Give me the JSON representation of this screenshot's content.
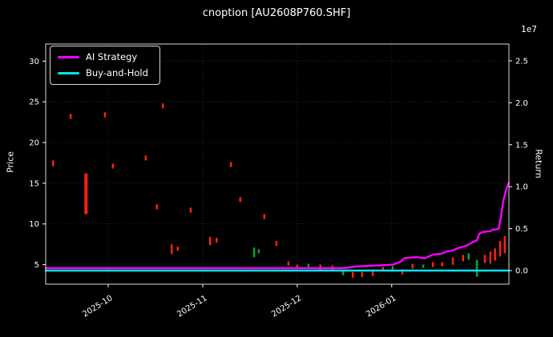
{
  "figure": {
    "background": "#000000",
    "text_color": "#ffffff"
  },
  "chart_data": {
    "type": "candlestick+line",
    "title": "cnoption [AU2608P760.SHF]",
    "ylabel_left": "Price",
    "ylabel_right": "Return",
    "right_axis_offset_label": "1e7",
    "grid": "dotted",
    "legend_position": "upper-left",
    "colors": {
      "up": "#00a63c",
      "down": "#ff2015",
      "ai_strategy": "#ff00ff",
      "buy_and_hold": "#00e5ee",
      "grid": "#ffffff",
      "text": "#ffffff",
      "spine": "#d9d9d9",
      "background": "#000000"
    },
    "x_axis": {
      "tick_labels": [
        "2025-10",
        "2025-11",
        "2025-12",
        "2026-01"
      ],
      "tick_positions": [
        0.135,
        0.339,
        0.543,
        0.747
      ]
    },
    "price_axis": {
      "min": 2.6,
      "max": 32.1,
      "ticks": [
        5,
        10,
        15,
        20,
        25,
        30
      ]
    },
    "return_axis": {
      "min": -0.162,
      "max": 2.7,
      "ticks": [
        0.0,
        0.5,
        1.0,
        1.5,
        2.0,
        2.5
      ],
      "unit": "1e7"
    },
    "series": [
      {
        "name": "AI Strategy",
        "color": "#ff00ff",
        "axis": "return",
        "points": [
          [
            0,
            0.03
          ],
          [
            0.645,
            0.03
          ],
          [
            0.671,
            0.05
          ],
          [
            0.714,
            0.06
          ],
          [
            0.749,
            0.07
          ],
          [
            0.766,
            0.105
          ],
          [
            0.775,
            0.15
          ],
          [
            0.801,
            0.16
          ],
          [
            0.818,
            0.145
          ],
          [
            0.836,
            0.19
          ],
          [
            0.853,
            0.2
          ],
          [
            0.867,
            0.23
          ],
          [
            0.879,
            0.24
          ],
          [
            0.891,
            0.27
          ],
          [
            0.905,
            0.29
          ],
          [
            0.913,
            0.31
          ],
          [
            0.922,
            0.34
          ],
          [
            0.931,
            0.36
          ],
          [
            0.936,
            0.44
          ],
          [
            0.943,
            0.46
          ],
          [
            0.96,
            0.47
          ],
          [
            0.965,
            0.49
          ],
          [
            0.971,
            0.49
          ],
          [
            0.978,
            0.5
          ],
          [
            0.983,
            0.65
          ],
          [
            0.988,
            0.84
          ],
          [
            0.995,
            0.98
          ],
          [
            1.0,
            1.05
          ]
        ]
      },
      {
        "name": "Buy-and-Hold",
        "color": "#00e5ee",
        "axis": "return",
        "points": [
          [
            0,
            0.0
          ],
          [
            1,
            0.0
          ]
        ]
      }
    ],
    "candles": [
      {
        "t": 0.016,
        "lo": 17.1,
        "hi": 17.8,
        "dir": "down"
      },
      {
        "t": 0.054,
        "lo": 22.9,
        "hi": 23.5,
        "dir": "down"
      },
      {
        "t": 0.087,
        "lo": 11.2,
        "hi": 16.2,
        "dir": "down",
        "w": 4
      },
      {
        "t": 0.128,
        "lo": 23.1,
        "hi": 23.7,
        "dir": "down"
      },
      {
        "t": 0.145,
        "lo": 16.8,
        "hi": 17.4,
        "dir": "down"
      },
      {
        "t": 0.216,
        "lo": 17.8,
        "hi": 18.4,
        "dir": "down"
      },
      {
        "t": 0.24,
        "lo": 11.8,
        "hi": 12.4,
        "dir": "down"
      },
      {
        "t": 0.253,
        "lo": 24.2,
        "hi": 24.8,
        "dir": "down"
      },
      {
        "t": 0.272,
        "lo": 6.3,
        "hi": 7.5,
        "dir": "down"
      },
      {
        "t": 0.285,
        "lo": 6.7,
        "hi": 7.2,
        "dir": "down"
      },
      {
        "t": 0.313,
        "lo": 11.4,
        "hi": 12.0,
        "dir": "down"
      },
      {
        "t": 0.355,
        "lo": 7.4,
        "hi": 8.4,
        "dir": "down"
      },
      {
        "t": 0.369,
        "lo": 7.7,
        "hi": 8.3,
        "dir": "down"
      },
      {
        "t": 0.4,
        "lo": 17.0,
        "hi": 17.6,
        "dir": "down"
      },
      {
        "t": 0.42,
        "lo": 12.7,
        "hi": 13.3,
        "dir": "down"
      },
      {
        "t": 0.45,
        "lo": 5.9,
        "hi": 7.1,
        "dir": "up"
      },
      {
        "t": 0.46,
        "lo": 6.4,
        "hi": 6.9,
        "dir": "up"
      },
      {
        "t": 0.472,
        "lo": 10.6,
        "hi": 11.2,
        "dir": "down"
      },
      {
        "t": 0.498,
        "lo": 7.3,
        "hi": 7.9,
        "dir": "down"
      },
      {
        "t": 0.524,
        "lo": 4.9,
        "hi": 5.4,
        "dir": "down"
      },
      {
        "t": 0.543,
        "lo": 4.6,
        "hi": 5.0,
        "dir": "down"
      },
      {
        "t": 0.567,
        "lo": 4.7,
        "hi": 5.1,
        "dir": "up"
      },
      {
        "t": 0.593,
        "lo": 4.3,
        "hi": 5.0,
        "dir": "down"
      },
      {
        "t": 0.619,
        "lo": 4.4,
        "hi": 4.9,
        "dir": "down"
      },
      {
        "t": 0.642,
        "lo": 3.7,
        "hi": 4.3,
        "dir": "up"
      },
      {
        "t": 0.663,
        "lo": 3.4,
        "hi": 4.1,
        "dir": "down"
      },
      {
        "t": 0.683,
        "lo": 3.5,
        "hi": 4.1,
        "dir": "down"
      },
      {
        "t": 0.706,
        "lo": 3.6,
        "hi": 4.2,
        "dir": "down"
      },
      {
        "t": 0.728,
        "lo": 4.2,
        "hi": 4.7,
        "dir": "down"
      },
      {
        "t": 0.749,
        "lo": 4.4,
        "hi": 4.8,
        "dir": "up"
      },
      {
        "t": 0.77,
        "lo": 3.8,
        "hi": 4.4,
        "dir": "down"
      },
      {
        "t": 0.792,
        "lo": 4.5,
        "hi": 5.1,
        "dir": "down"
      },
      {
        "t": 0.815,
        "lo": 4.6,
        "hi": 5.0,
        "dir": "up"
      },
      {
        "t": 0.836,
        "lo": 4.7,
        "hi": 5.3,
        "dir": "down"
      },
      {
        "t": 0.856,
        "lo": 4.8,
        "hi": 5.3,
        "dir": "down"
      },
      {
        "t": 0.879,
        "lo": 5.0,
        "hi": 5.9,
        "dir": "down"
      },
      {
        "t": 0.901,
        "lo": 5.4,
        "hi": 6.2,
        "dir": "down"
      },
      {
        "t": 0.913,
        "lo": 5.6,
        "hi": 6.4,
        "dir": "up"
      },
      {
        "t": 0.931,
        "lo": 3.5,
        "hi": 5.6,
        "dir": "up"
      },
      {
        "t": 0.948,
        "lo": 5.2,
        "hi": 6.2,
        "dir": "down"
      },
      {
        "t": 0.96,
        "lo": 5.1,
        "hi": 6.6,
        "dir": "down"
      },
      {
        "t": 0.97,
        "lo": 5.5,
        "hi": 7.0,
        "dir": "down"
      },
      {
        "t": 0.981,
        "lo": 6.0,
        "hi": 7.9,
        "dir": "down"
      },
      {
        "t": 0.991,
        "lo": 6.4,
        "hi": 8.5,
        "dir": "down"
      }
    ]
  }
}
